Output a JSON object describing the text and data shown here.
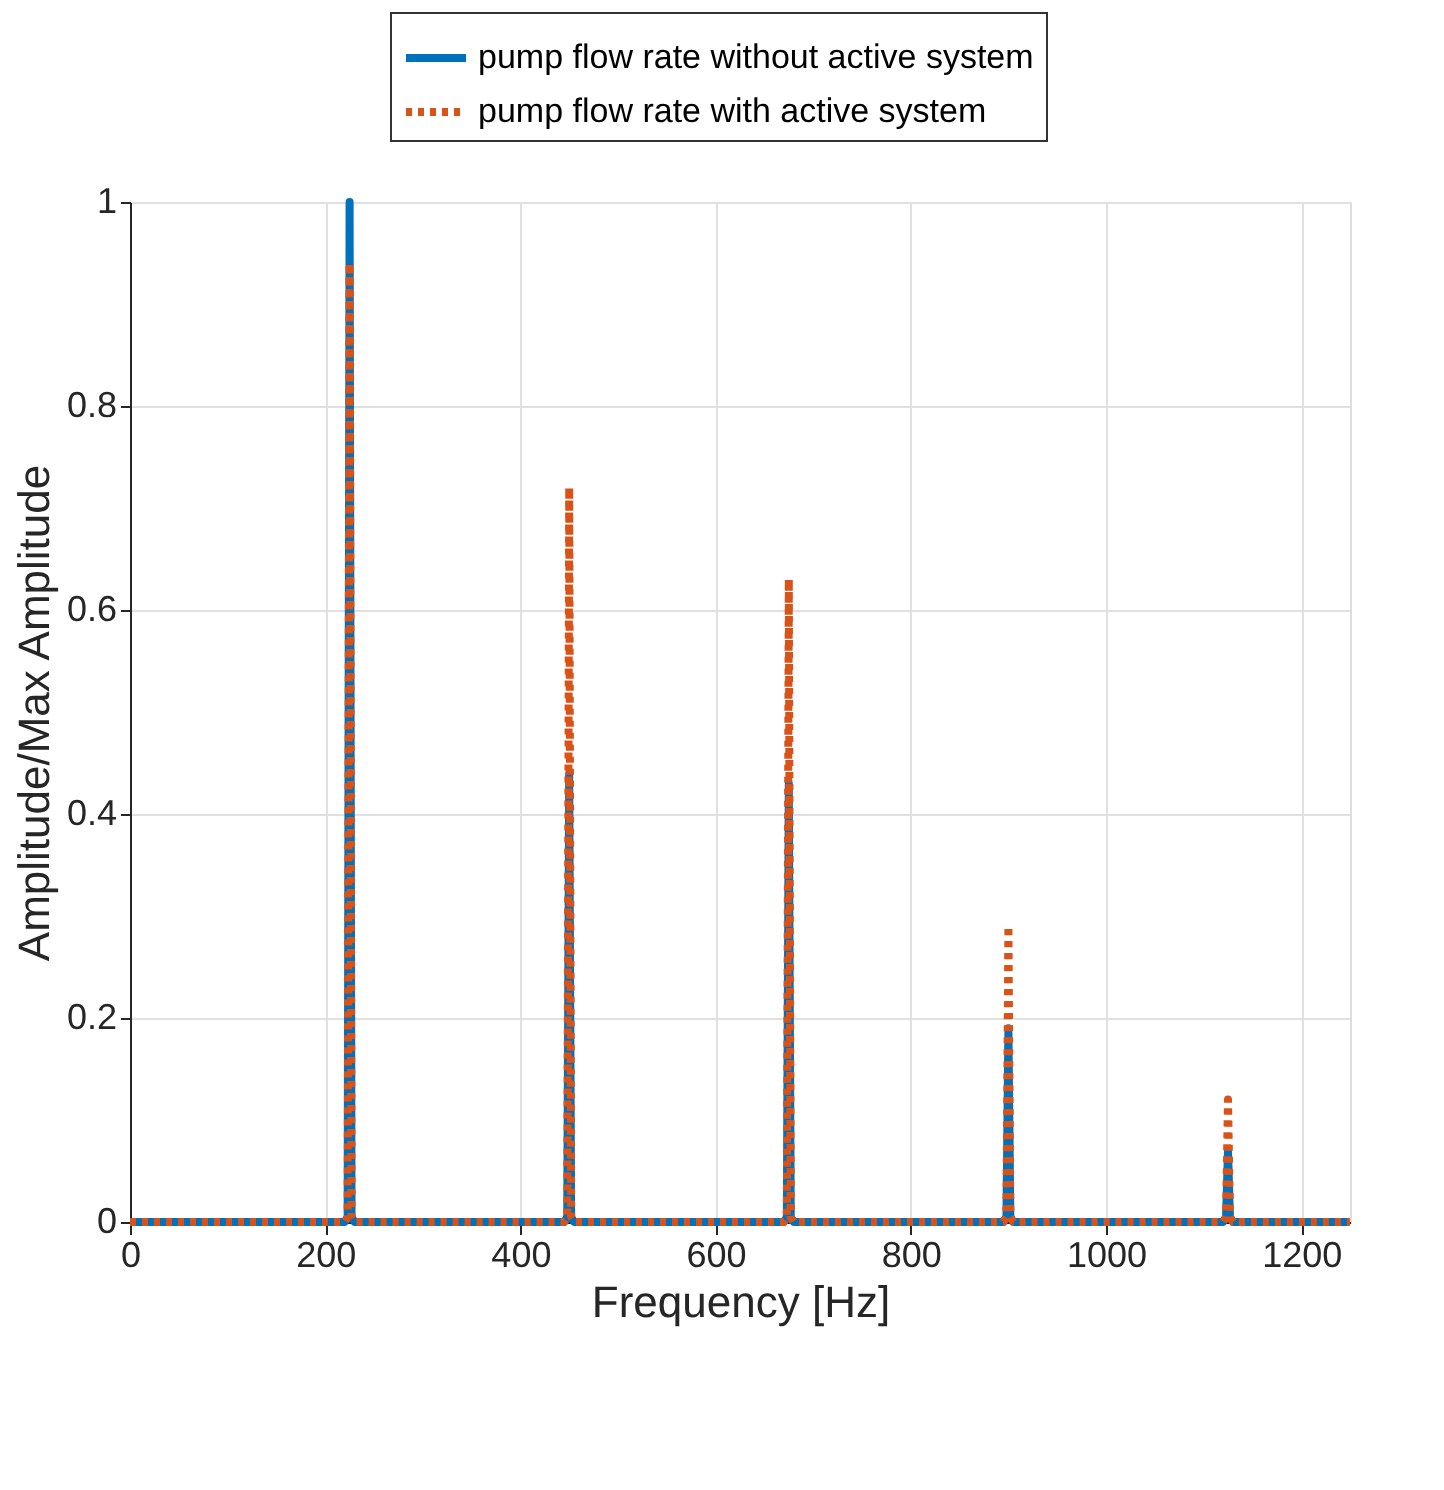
{
  "chart_data": {
    "type": "line",
    "xlabel": "Frequency [Hz]",
    "ylabel": "Amplitude/Max Amplitude",
    "x": [
      0,
      50,
      100,
      150,
      220,
      223,
      225,
      227,
      230,
      300,
      350,
      400,
      445,
      448,
      450,
      452,
      455,
      500,
      550,
      600,
      670,
      673,
      675,
      677,
      680,
      750,
      800,
      850,
      895,
      898,
      900,
      902,
      905,
      950,
      1000,
      1050,
      1120,
      1123,
      1125,
      1127,
      1130,
      1200,
      1250
    ],
    "series": [
      {
        "name": "pump flow rate without active system",
        "color": "#0072bd",
        "line_style": "solid",
        "values": [
          0,
          0,
          0,
          0,
          0,
          0.005,
          1.0,
          0.005,
          0,
          0,
          0,
          0,
          0,
          0.005,
          0.44,
          0.005,
          0,
          0,
          0,
          0,
          0,
          0.005,
          0.43,
          0.005,
          0,
          0,
          0,
          0,
          0,
          0.005,
          0.19,
          0.005,
          0,
          0,
          0,
          0,
          0,
          0.005,
          0.07,
          0.005,
          0,
          0,
          0
        ]
      },
      {
        "name": "pump flow rate with active system",
        "color": "#d95319",
        "line_style": "dotted",
        "values": [
          0,
          0,
          0,
          0,
          0,
          0.005,
          0.94,
          0.005,
          0,
          0,
          0,
          0,
          0,
          0.005,
          0.72,
          0.005,
          0,
          0,
          0,
          0,
          0,
          0.005,
          0.63,
          0.005,
          0,
          0,
          0,
          0,
          0,
          0.005,
          0.29,
          0.005,
          0,
          0,
          0,
          0,
          0,
          0.005,
          0.12,
          0.005,
          0,
          0,
          0
        ]
      }
    ],
    "xlim": [
      0,
      1250
    ],
    "xticks": [
      0,
      200,
      400,
      600,
      800,
      1000,
      1200
    ],
    "ylim": [
      0,
      1
    ],
    "yticks": [
      0,
      0.2,
      0.4,
      0.6,
      0.8,
      1
    ],
    "grid": true,
    "legend": "top",
    "marker": "none"
  }
}
